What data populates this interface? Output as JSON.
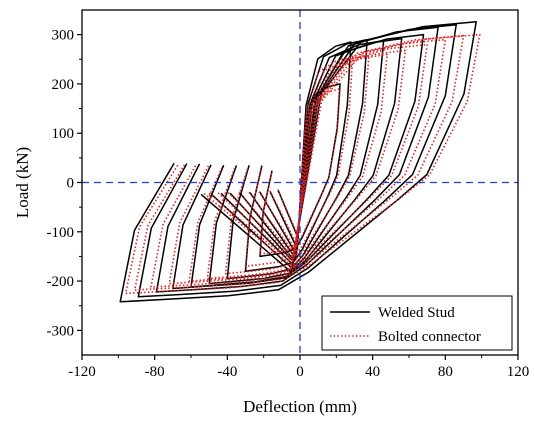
{
  "chart_data": {
    "type": "line",
    "xlabel": "Deflection (mm)",
    "ylabel": "Load (kN)",
    "xlim": [
      -120,
      120
    ],
    "ylim": [
      -350,
      350
    ],
    "xticks": [
      -120,
      -80,
      -40,
      0,
      40,
      80,
      120
    ],
    "yticks": [
      300,
      200,
      100,
      0,
      -100,
      -200,
      -300
    ],
    "grid": false,
    "legend_position": "bottom-right",
    "reference_lines": {
      "x": 0,
      "y": 0,
      "color": "#1f3fd6",
      "style": "dashed"
    },
    "colors": {
      "welded": "#000000",
      "bolted": "#e02020",
      "reference": "#1f3fd6"
    },
    "series": [
      {
        "name": "Welded Stud",
        "style": "solid",
        "color": "#000000",
        "loops": [
          {
            "amp_pos": 22,
            "amp_neg": -22,
            "peak_pos": 200,
            "peak_neg": -150
          },
          {
            "amp_pos": 28,
            "amp_neg": -30,
            "peak_pos": 285,
            "peak_neg": -180
          },
          {
            "amp_pos": 37,
            "amp_neg": -40,
            "peak_pos": 290,
            "peak_neg": -195
          },
          {
            "amp_pos": 46,
            "amp_neg": -50,
            "peak_pos": 288,
            "peak_neg": -205
          },
          {
            "amp_pos": 56,
            "amp_neg": -60,
            "peak_pos": 292,
            "peak_neg": -212
          },
          {
            "amp_pos": 68,
            "amp_neg": -70,
            "peak_pos": 300,
            "peak_neg": -215
          },
          {
            "amp_pos": 76,
            "amp_neg": -79,
            "peak_pos": 315,
            "peak_neg": -222
          },
          {
            "amp_pos": 86,
            "amp_neg": -89,
            "peak_pos": 320,
            "peak_neg": -232
          },
          {
            "amp_pos": 97,
            "amp_neg": -99,
            "peak_pos": 326,
            "peak_neg": -242
          }
        ]
      },
      {
        "name": "Bolted connector",
        "style": "dotted",
        "color": "#e02020",
        "loops": [
          {
            "amp_pos": 22,
            "amp_neg": -22,
            "peak_pos": 190,
            "peak_neg": -145
          },
          {
            "amp_pos": 29,
            "amp_neg": -30,
            "peak_pos": 255,
            "peak_neg": -170
          },
          {
            "amp_pos": 38,
            "amp_neg": -41,
            "peak_pos": 258,
            "peak_neg": -185
          },
          {
            "amp_pos": 48,
            "amp_neg": -51,
            "peak_pos": 260,
            "peak_neg": -195
          },
          {
            "amp_pos": 58,
            "amp_neg": -61,
            "peak_pos": 268,
            "peak_neg": -200
          },
          {
            "amp_pos": 70,
            "amp_neg": -72,
            "peak_pos": 280,
            "peak_neg": -205
          },
          {
            "amp_pos": 80,
            "amp_neg": -82,
            "peak_pos": 290,
            "peak_neg": -212
          },
          {
            "amp_pos": 90,
            "amp_neg": -91,
            "peak_pos": 298,
            "peak_neg": -218
          },
          {
            "amp_pos": 99,
            "amp_neg": -96,
            "peak_pos": 300,
            "peak_neg": -225
          }
        ]
      }
    ]
  }
}
